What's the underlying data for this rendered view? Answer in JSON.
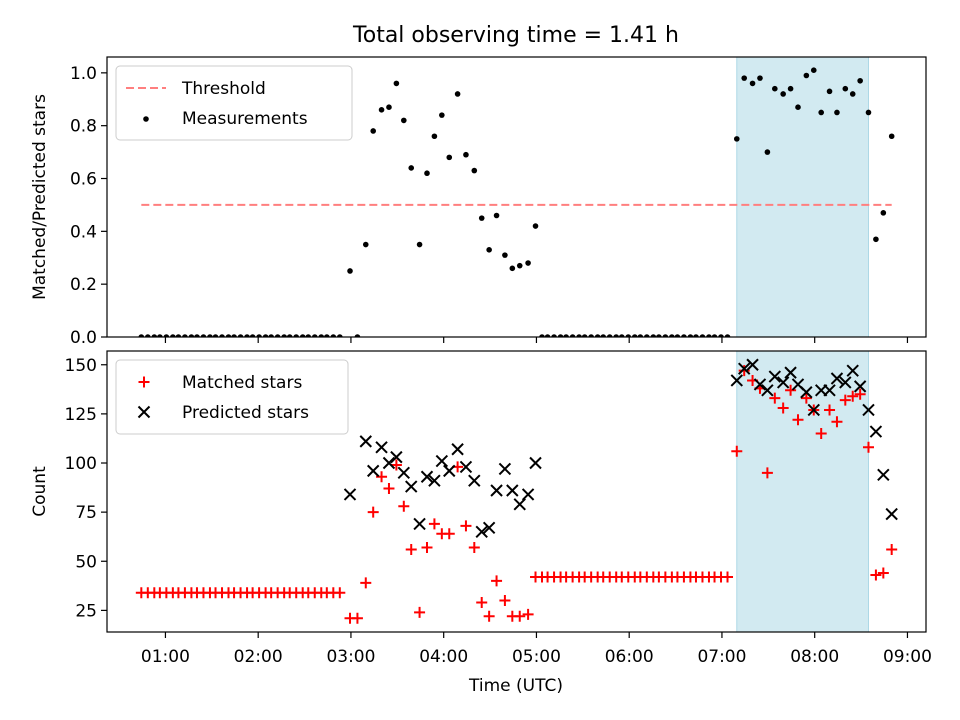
{
  "chart_data": {
    "title": "Total observing time = 1.41 h",
    "x_axis": {
      "label": "Time (UTC)",
      "unit": "hours UTC",
      "range": [
        0.37,
        9.2
      ],
      "ticks": [
        {
          "v": 1,
          "label": "01:00"
        },
        {
          "v": 2,
          "label": "02:00"
        },
        {
          "v": 3,
          "label": "03:00"
        },
        {
          "v": 4,
          "label": "04:00"
        },
        {
          "v": 5,
          "label": "05:00"
        },
        {
          "v": 6,
          "label": "06:00"
        },
        {
          "v": 7,
          "label": "07:00"
        },
        {
          "v": 8,
          "label": "08:00"
        },
        {
          "v": 9,
          "label": "09:00"
        }
      ]
    },
    "highlight_span": {
      "x": [
        7.16,
        8.58
      ],
      "color": "#add8e6"
    },
    "panels": [
      {
        "type": "scatter",
        "ylabel": "Matched/Predicted stars",
        "ylim": [
          0,
          1.06
        ],
        "yticks": [
          "0.0",
          "0.2",
          "0.4",
          "0.6",
          "0.8",
          "1.0"
        ],
        "legend": "top-left",
        "series": [
          {
            "name": "Threshold",
            "kind": "dashed-line",
            "color": "#ff7f7f",
            "x": [
              0.74,
              8.83
            ],
            "y": [
              0.5,
              0.5
            ]
          },
          {
            "name": "Measurements",
            "kind": "dots",
            "color": "#000000",
            "x": [
              0.74,
              0.81,
              0.88,
              0.94,
              1.01,
              1.08,
              1.14,
              1.21,
              1.28,
              1.34,
              1.41,
              1.48,
              1.54,
              1.61,
              1.68,
              1.74,
              1.81,
              1.88,
              1.94,
              2.01,
              2.08,
              2.14,
              2.21,
              2.28,
              2.34,
              2.41,
              2.48,
              2.54,
              2.61,
              2.68,
              2.74,
              2.81,
              2.88,
              2.99,
              3.07,
              3.16,
              3.24,
              3.33,
              3.41,
              3.49,
              3.57,
              3.65,
              3.74,
              3.82,
              3.9,
              3.98,
              4.06,
              4.15,
              4.24,
              4.33,
              4.41,
              4.49,
              4.57,
              4.66,
              4.74,
              4.82,
              4.91,
              4.99,
              5.06,
              5.12,
              5.19,
              5.26,
              5.32,
              5.39,
              5.46,
              5.52,
              5.59,
              5.66,
              5.72,
              5.79,
              5.86,
              5.92,
              5.99,
              6.06,
              6.12,
              6.19,
              6.26,
              6.32,
              6.39,
              6.46,
              6.52,
              6.59,
              6.66,
              6.72,
              6.79,
              6.86,
              6.92,
              6.99,
              7.06,
              7.16,
              7.24,
              7.33,
              7.41,
              7.49,
              7.57,
              7.66,
              7.74,
              7.82,
              7.91,
              7.99,
              8.07,
              8.16,
              8.24,
              8.33,
              8.41,
              8.49,
              8.58,
              8.66,
              8.74,
              8.83
            ],
            "y": [
              0,
              0,
              0,
              0,
              0,
              0,
              0,
              0,
              0,
              0,
              0,
              0,
              0,
              0,
              0,
              0,
              0,
              0,
              0,
              0,
              0,
              0,
              0,
              0,
              0,
              0,
              0,
              0,
              0,
              0,
              0,
              0,
              0,
              0.25,
              0,
              0.35,
              0.78,
              0.86,
              0.87,
              0.96,
              0.82,
              0.64,
              0.35,
              0.62,
              0.76,
              0.84,
              0.68,
              0.92,
              0.69,
              0.63,
              0.45,
              0.33,
              0.46,
              0.31,
              0.26,
              0.27,
              0.28,
              0.42,
              0,
              0,
              0,
              0,
              0,
              0,
              0,
              0,
              0,
              0,
              0,
              0,
              0,
              0,
              0,
              0,
              0,
              0,
              0,
              0,
              0,
              0,
              0,
              0,
              0,
              0,
              0,
              0,
              0,
              0,
              0,
              0.75,
              0.98,
              0.96,
              0.98,
              0.7,
              0.94,
              0.92,
              0.94,
              0.87,
              0.99,
              1.01,
              0.85,
              0.93,
              0.85,
              0.94,
              0.92,
              0.97,
              0.85,
              0.37,
              0.47,
              0.76
            ]
          }
        ]
      },
      {
        "type": "scatter",
        "ylabel": "Count",
        "ylim": [
          14,
          157
        ],
        "yticks": [
          "25",
          "50",
          "75",
          "100",
          "125",
          "150"
        ],
        "legend": "top-left",
        "series": [
          {
            "name": "Matched stars",
            "kind": "plus",
            "color": "#ff0000",
            "x": [
              0.74,
              0.81,
              0.88,
              0.94,
              1.01,
              1.08,
              1.14,
              1.21,
              1.28,
              1.34,
              1.41,
              1.48,
              1.54,
              1.61,
              1.68,
              1.74,
              1.81,
              1.88,
              1.94,
              2.01,
              2.08,
              2.14,
              2.21,
              2.28,
              2.34,
              2.41,
              2.48,
              2.54,
              2.61,
              2.68,
              2.74,
              2.81,
              2.88,
              2.99,
              3.07,
              3.16,
              3.24,
              3.33,
              3.41,
              3.49,
              3.57,
              3.65,
              3.74,
              3.82,
              3.9,
              3.98,
              4.06,
              4.15,
              4.24,
              4.33,
              4.41,
              4.49,
              4.57,
              4.66,
              4.74,
              4.82,
              4.91,
              4.99,
              5.06,
              5.12,
              5.19,
              5.26,
              5.32,
              5.39,
              5.46,
              5.52,
              5.59,
              5.66,
              5.72,
              5.79,
              5.86,
              5.92,
              5.99,
              6.06,
              6.12,
              6.19,
              6.26,
              6.32,
              6.39,
              6.46,
              6.52,
              6.59,
              6.66,
              6.72,
              6.79,
              6.86,
              6.92,
              6.99,
              7.06,
              7.16,
              7.24,
              7.33,
              7.41,
              7.49,
              7.57,
              7.66,
              7.74,
              7.82,
              7.91,
              7.99,
              8.07,
              8.16,
              8.24,
              8.33,
              8.41,
              8.49,
              8.58,
              8.66,
              8.74,
              8.83
            ],
            "y": [
              34,
              34,
              34,
              34,
              34,
              34,
              34,
              34,
              34,
              34,
              34,
              34,
              34,
              34,
              34,
              34,
              34,
              34,
              34,
              34,
              34,
              34,
              34,
              34,
              34,
              34,
              34,
              34,
              34,
              34,
              34,
              34,
              34,
              21,
              21,
              39,
              75,
              93,
              87,
              99,
              78,
              56,
              24,
              57,
              69,
              64,
              64,
              98,
              68,
              57,
              29,
              22,
              40,
              30,
              22,
              22,
              23,
              42,
              42,
              42,
              42,
              42,
              42,
              42,
              42,
              42,
              42,
              42,
              42,
              42,
              42,
              42,
              42,
              42,
              42,
              42,
              42,
              42,
              42,
              42,
              42,
              42,
              42,
              42,
              42,
              42,
              42,
              42,
              42,
              106,
              147,
              142,
              138,
              95,
              133,
              128,
              137,
              122,
              133,
              127,
              115,
              127,
              121,
              132,
              134,
              135,
              108,
              43,
              44,
              56
            ]
          },
          {
            "name": "Predicted stars",
            "kind": "x",
            "color": "#000000",
            "x": [
              2.99,
              3.16,
              3.24,
              3.33,
              3.41,
              3.49,
              3.57,
              3.65,
              3.74,
              3.82,
              3.9,
              3.98,
              4.06,
              4.15,
              4.24,
              4.33,
              4.41,
              4.49,
              4.57,
              4.66,
              4.74,
              4.82,
              4.91,
              4.99,
              7.16,
              7.24,
              7.33,
              7.41,
              7.49,
              7.57,
              7.66,
              7.74,
              7.82,
              7.91,
              7.99,
              8.07,
              8.16,
              8.24,
              8.33,
              8.41,
              8.49,
              8.58,
              8.66,
              8.74,
              8.83
            ],
            "y": [
              84,
              111,
              96,
              108,
              100,
              103,
              95,
              88,
              69,
              93,
              91,
              101,
              96,
              107,
              98,
              91,
              65,
              67,
              86,
              97,
              86,
              79,
              84,
              100,
              142,
              148,
              150,
              140,
              137,
              144,
              141,
              146,
              140,
              136,
              127,
              137,
              137,
              143,
              141,
              147,
              139,
              127,
              116,
              94,
              74
            ]
          }
        ]
      }
    ]
  }
}
